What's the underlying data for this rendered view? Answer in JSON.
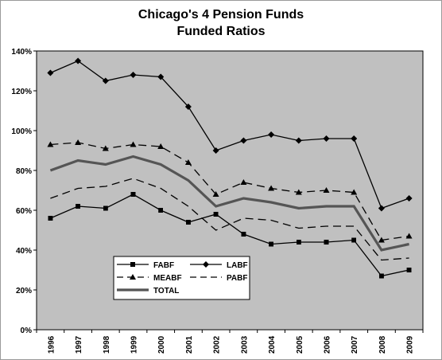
{
  "chart_data": {
    "type": "line",
    "title_lines": [
      "Chicago's 4 Pension Funds",
      "Funded Ratios"
    ],
    "x": [
      "1996",
      "1997",
      "1998",
      "1999",
      "2000",
      "2001",
      "2002",
      "2003",
      "2004",
      "2005",
      "2006",
      "2007",
      "2008",
      "2009"
    ],
    "y_ticks": [
      "0%",
      "20%",
      "40%",
      "60%",
      "80%",
      "100%",
      "120%",
      "140%"
    ],
    "ylim": [
      0,
      140
    ],
    "grid": false,
    "legend_position": "lower-left inside plot",
    "plot_background": "#c0c0c0",
    "series": [
      {
        "name": "FABF",
        "style": "solid-square",
        "color": "#000000",
        "values": [
          56,
          62,
          61,
          68,
          60,
          54,
          58,
          48,
          43,
          44,
          44,
          45,
          27,
          30
        ]
      },
      {
        "name": "LABF",
        "style": "solid-diamond",
        "color": "#000000",
        "values": [
          129,
          135,
          125,
          128,
          127,
          112,
          90,
          95,
          98,
          95,
          96,
          96,
          61,
          66
        ]
      },
      {
        "name": "MEABF",
        "style": "dash-triangle",
        "color": "#000000",
        "values": [
          93,
          94,
          91,
          93,
          92,
          84,
          68,
          74,
          71,
          69,
          70,
          69,
          45,
          47
        ]
      },
      {
        "name": "PABF",
        "style": "dash",
        "color": "#000000",
        "values": [
          66,
          71,
          72,
          76,
          71,
          62,
          50,
          56,
          55,
          51,
          52,
          52,
          35,
          36
        ]
      },
      {
        "name": "TOTAL",
        "style": "thick-solid",
        "color": "#555555",
        "values": [
          80,
          85,
          83,
          87,
          83,
          75,
          62,
          66,
          64,
          61,
          62,
          62,
          40,
          43
        ]
      }
    ]
  }
}
